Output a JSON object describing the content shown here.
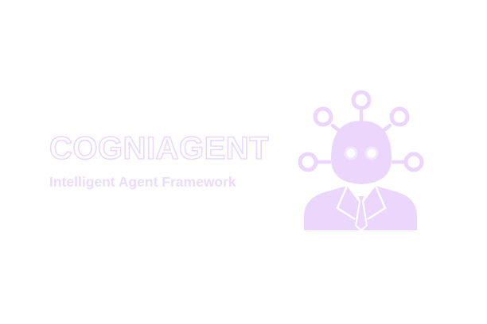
{
  "brand": {
    "name": "COGNIAGENT",
    "tagline": "Intelligent Agent Framework"
  },
  "logo": {
    "icon": "robot-agent-network-icon"
  },
  "colors": {
    "background": "#ffffff",
    "accent": "#ead7fb",
    "accent_dark": "#f4ebfd"
  }
}
